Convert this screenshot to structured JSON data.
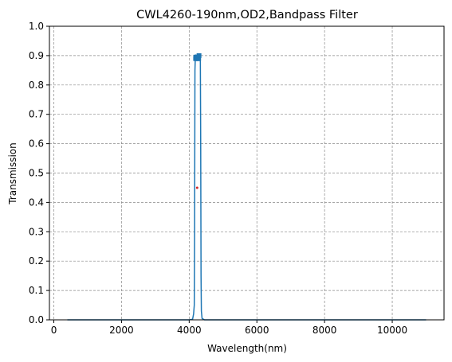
{
  "chart_data": {
    "type": "line",
    "title": "CWL4260-190nm,OD2,Bandpass Filter",
    "x_label": "Wavelength(nm)",
    "y_label": "Transmission",
    "series": [
      {
        "x": [
          400,
          4000,
          4100,
          4130,
          4150,
          4160,
          4170,
          4180,
          4200,
          4250,
          4300,
          4330,
          4340,
          4350,
          4360,
          4380,
          4450,
          11000
        ],
        "values": [
          0,
          0,
          0.002,
          0.02,
          0.05,
          0.3,
          0.85,
          0.89,
          0.9,
          0.89,
          0.9,
          0.88,
          0.6,
          0.15,
          0.03,
          0.005,
          0,
          0
        ],
        "color": "#1f77b4"
      }
    ],
    "markers": {
      "x": [
        4190,
        4200,
        4210,
        4220,
        4230,
        4240,
        4250,
        4260,
        4270,
        4280,
        4290
      ],
      "values": [
        0.89,
        0.895,
        0.89,
        0.89,
        0.892,
        0.89,
        0.89,
        0.895,
        0.89,
        0.89,
        0.9
      ],
      "color": "#1f77b4"
    },
    "center_point": {
      "x": 4235,
      "value": 0.45,
      "color": "#d62728"
    },
    "xlim": [
      -130,
      11530
    ],
    "xticks": [
      0,
      2000,
      4000,
      6000,
      8000,
      10000
    ],
    "ylim": [
      0,
      1
    ],
    "yticks": [
      {
        "value": 0,
        "label": "0.0"
      },
      0.1,
      0.2,
      0.3,
      0.4,
      0.5,
      0.6,
      0.7,
      0.8,
      0.9,
      {
        "value": 1,
        "label": "1.0"
      }
    ],
    "grid": true
  }
}
